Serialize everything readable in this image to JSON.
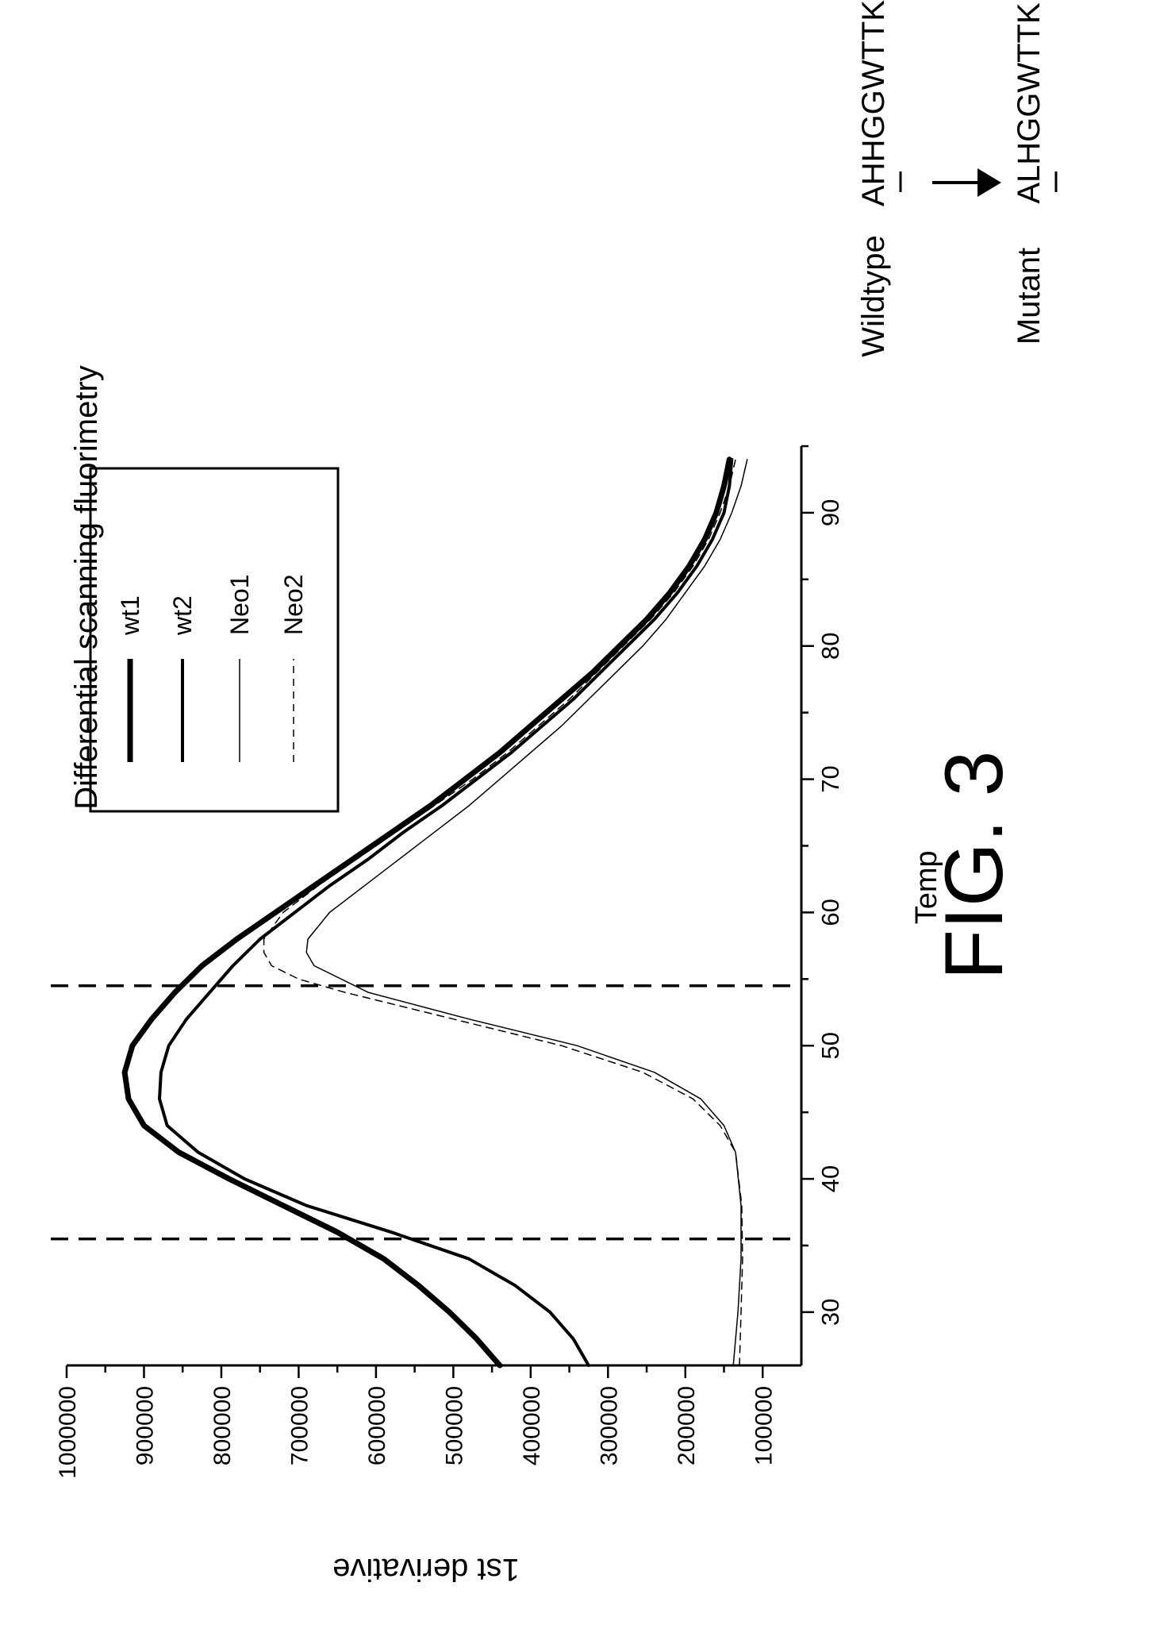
{
  "figure_label": "FIG. 3",
  "chart_data": {
    "type": "line",
    "title": "Differential scanning fluorimetry",
    "xlabel": "Temp",
    "ylabel": "1st derivative",
    "xlim": [
      26,
      95
    ],
    "ylim": [
      50000,
      1000000
    ],
    "x_ticks": [
      30,
      40,
      50,
      60,
      70,
      80,
      90
    ],
    "y_ticks": [
      100000,
      200000,
      300000,
      400000,
      500000,
      600000,
      700000,
      800000,
      900000,
      1000000
    ],
    "y_tick_labels": [
      "100000",
      "200000",
      "300000",
      "400000",
      "500000",
      "600000",
      "700000",
      "800000",
      "900000",
      "1000000"
    ],
    "grid": false,
    "legend_position": "upper-right",
    "reference_lines_x": [
      35.5,
      54.5
    ],
    "series": [
      {
        "name": "wt1",
        "style": "thick-solid",
        "x": [
          26,
          28,
          30,
          32,
          34,
          36,
          38,
          40,
          42,
          44,
          46,
          48,
          50,
          52,
          54,
          56,
          58,
          60,
          62,
          64,
          66,
          68,
          70,
          72,
          74,
          76,
          78,
          80,
          82,
          84,
          86,
          88,
          90,
          92,
          94
        ],
        "y": [
          440000,
          470000,
          505000,
          545000,
          590000,
          650000,
          720000,
          790000,
          855000,
          900000,
          920000,
          925000,
          915000,
          890000,
          860000,
          825000,
          780000,
          730000,
          680000,
          630000,
          580000,
          530000,
          485000,
          440000,
          400000,
          360000,
          320000,
          285000,
          250000,
          220000,
          195000,
          175000,
          160000,
          150000,
          143000
        ]
      },
      {
        "name": "wt2",
        "style": "medium-solid",
        "x": [
          26,
          28,
          30,
          32,
          34,
          36,
          38,
          40,
          42,
          44,
          46,
          48,
          50,
          52,
          54,
          56,
          58,
          60,
          62,
          64,
          66,
          68,
          70,
          72,
          74,
          76,
          78,
          80,
          82,
          84,
          86,
          88,
          90,
          92,
          94
        ],
        "y": [
          325000,
          345000,
          375000,
          420000,
          480000,
          580000,
          690000,
          770000,
          830000,
          870000,
          880000,
          878000,
          868000,
          845000,
          815000,
          785000,
          750000,
          705000,
          660000,
          610000,
          565000,
          515000,
          470000,
          425000,
          385000,
          345000,
          310000,
          275000,
          240000,
          210000,
          185000,
          165000,
          150000,
          143000,
          140000
        ]
      },
      {
        "name": "Neo1",
        "style": "thin-solid",
        "x": [
          26,
          30,
          34,
          38,
          42,
          44,
          46,
          48,
          50,
          52,
          54,
          56,
          57,
          58,
          60,
          62,
          64,
          66,
          68,
          70,
          72,
          74,
          76,
          78,
          80,
          82,
          84,
          86,
          88,
          90,
          92,
          94
        ],
        "y": [
          138000,
          132000,
          128000,
          128000,
          135000,
          150000,
          180000,
          240000,
          340000,
          480000,
          610000,
          680000,
          690000,
          688000,
          660000,
          615000,
          570000,
          525000,
          480000,
          440000,
          400000,
          360000,
          325000,
          290000,
          255000,
          225000,
          200000,
          175000,
          155000,
          140000,
          128000,
          120000
        ]
      },
      {
        "name": "Neo2",
        "style": "thin-dashed",
        "x": [
          26,
          30,
          34,
          38,
          42,
          44,
          46,
          48,
          50,
          52,
          54,
          55,
          56,
          57,
          58,
          60,
          62,
          64,
          66,
          68,
          70,
          72,
          74,
          76,
          78,
          80,
          82,
          84,
          86,
          88,
          90,
          92,
          94
        ],
        "y": [
          130000,
          128000,
          126000,
          127000,
          135000,
          155000,
          190000,
          255000,
          360000,
          500000,
          640000,
          700000,
          735000,
          745000,
          745000,
          720000,
          675000,
          625000,
          575000,
          525000,
          475000,
          430000,
          390000,
          350000,
          315000,
          280000,
          245000,
          215000,
          190000,
          170000,
          155000,
          143000,
          135000
        ]
      }
    ],
    "annotations": {
      "wildtype_label": "Wildtype",
      "wildtype_sequence": "AHHGGWTTK",
      "mutant_label": "Mutant",
      "mutant_sequence": "ALHGGWTTK",
      "changed_residue_position": 2
    }
  }
}
